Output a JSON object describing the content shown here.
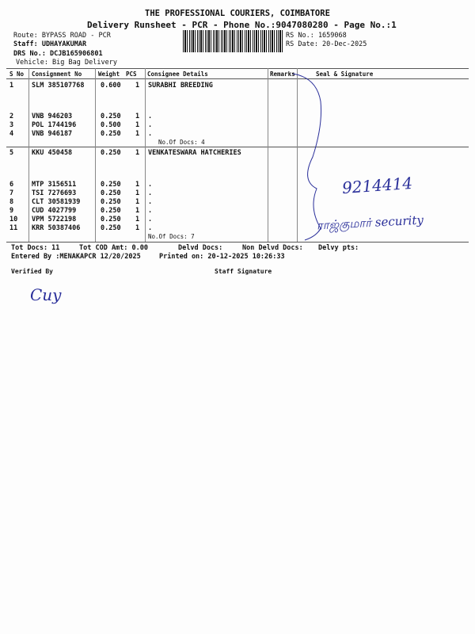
{
  "header": {
    "company": "THE PROFESSIONAL COURIERS, COIMBATORE",
    "subtitle": "Delivery Runsheet - PCR - Phone No.:9047080280 - Page No.:1",
    "route": "Route: BYPASS ROAD - PCR",
    "staff": "Staff: UDHAYAKUMAR",
    "drs": "DRS No.: DCJB165906801",
    "vehicle": "Vehicle: Big Bag Delivery",
    "rs_no": "RS No.: 1659068",
    "rs_date": "RS Date: 20-Dec-2025"
  },
  "table": {
    "columns": [
      "S No",
      "Consignment No",
      "Weight",
      "PCS",
      "Consignee Details",
      "Remarks",
      "Seal & Signature"
    ],
    "groups": [
      {
        "consignee": "SURABHI BREEDING",
        "docs": "No.Of Docs: 4",
        "rows": [
          {
            "sno": "1",
            "cn": "SLM 385107768",
            "weight": "0.600",
            "pcs": "1",
            "detail": ""
          },
          {
            "sno": "2",
            "cn": "VNB 946203",
            "weight": "0.250",
            "pcs": "1",
            "detail": "."
          },
          {
            "sno": "3",
            "cn": "POL 1744196",
            "weight": "0.500",
            "pcs": "1",
            "detail": "."
          },
          {
            "sno": "4",
            "cn": "VNB 946187",
            "weight": "0.250",
            "pcs": "1",
            "detail": "."
          }
        ]
      },
      {
        "consignee": "VENKATESWARA HATCHERIES",
        "docs": "No.Of Docs: 7",
        "rows": [
          {
            "sno": "5",
            "cn": "KKU 450458",
            "weight": "0.250",
            "pcs": "1",
            "detail": ""
          },
          {
            "sno": "6",
            "cn": "MTP 3156511",
            "weight": "0.250",
            "pcs": "1",
            "detail": "."
          },
          {
            "sno": "7",
            "cn": "TSI 7276693",
            "weight": "0.250",
            "pcs": "1",
            "detail": "."
          },
          {
            "sno": "8",
            "cn": "CLT 30581939",
            "weight": "0.250",
            "pcs": "1",
            "detail": "."
          },
          {
            "sno": "9",
            "cn": "CUD 4027799",
            "weight": "0.250",
            "pcs": "1",
            "detail": "."
          },
          {
            "sno": "10",
            "cn": "VPM 5722198",
            "weight": "0.250",
            "pcs": "1",
            "detail": "."
          },
          {
            "sno": "11",
            "cn": "KRR 50387406",
            "weight": "0.250",
            "pcs": "1",
            "detail": "."
          }
        ]
      }
    ]
  },
  "totals": {
    "tot_docs": "Tot Docs:  11",
    "tot_cod": "Tot COD Amt:    0.00",
    "delvd": "Delvd Docs:",
    "non_delvd": "Non Delvd Docs:",
    "delvy_pts": "Delvy pts:",
    "entered_by": "Entered By :MENAKAPCR 12/20/2025",
    "printed_on": "Printed on: 20-12-2025 10:26:33"
  },
  "footer": {
    "verified_by": "Verified By",
    "staff_signature": "Staff Signature"
  },
  "handwriting": {
    "phone": "9214414",
    "name": "ராஜ்குமார் security",
    "verifier_sign": "Cuy"
  },
  "colors": {
    "ink": "#2a2f9a"
  }
}
